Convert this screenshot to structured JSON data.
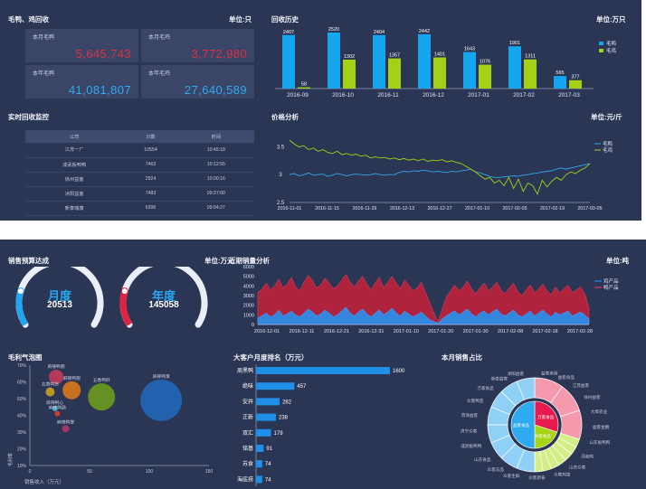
{
  "recycle": {
    "title": "毛鸭、鸡回收",
    "unit": "单位:只",
    "cards": [
      {
        "label": "本月毛鸭",
        "value": "5,645,743",
        "color": "#e03040"
      },
      {
        "label": "本月毛鸡",
        "value": "3,772,980",
        "color": "#e03040"
      },
      {
        "label": "本年毛鸭",
        "value": "41,081,807",
        "color": "#2eaaf0"
      },
      {
        "label": "本年毛鸡",
        "value": "27,640,589",
        "color": "#2eaaf0"
      }
    ]
  },
  "history": {
    "title": "回收历史",
    "unit": "单位:万只",
    "chart_data": {
      "type": "bar",
      "categories": [
        "2016-09",
        "2016-10",
        "2016-11",
        "2016-12",
        "2017-01",
        "2017-02",
        "2017-03"
      ],
      "series": [
        {
          "name": "毛鸭",
          "values": [
            2407,
            2520,
            2404,
            2442,
            1643,
            1901,
            565
          ],
          "color": "#16a6ef"
        },
        {
          "name": "毛鸡",
          "values": [
            58,
            1302,
            1357,
            1401,
            1076,
            1311,
            377
          ],
          "color": "#a4d115"
        }
      ],
      "ylim": [
        0,
        2600
      ]
    }
  },
  "monitor": {
    "title": "实时回收监控",
    "headers": [
      "公司",
      "只数",
      "时间"
    ],
    "rows": [
      [
        "江苏一厂",
        "10554",
        "10:45:18"
      ],
      [
        "成武板鸭鸭",
        "7463",
        "10:12:55"
      ],
      [
        "徐州益客",
        "2924",
        "10:00:16"
      ],
      [
        "沭阳益客",
        "7483",
        "09:37:00"
      ],
      [
        "新泰瑞康",
        "6396",
        "09:04:27"
      ]
    ]
  },
  "price": {
    "title": "价格分析",
    "unit": "单位:元/斤",
    "chart_data": {
      "type": "line",
      "x_ticks": [
        "2016-11-01",
        "2016-11-15",
        "2016-11-29",
        "2016-12-13",
        "2016-12-27",
        "2017-01-10",
        "2017-02-05",
        "2017-02-19",
        "2017-03-05"
      ],
      "y_ticks": [
        "3.5",
        "3",
        "2.5"
      ],
      "ylim": [
        2.5,
        3.8
      ],
      "series": [
        {
          "name": "毛鸭",
          "color": "#2ea8e8",
          "values": [
            3.0,
            3.02,
            2.98,
            3.0,
            3.03,
            2.99,
            3.0,
            3.01,
            2.97,
            2.99,
            3.02,
            3.0,
            2.98,
            3.0,
            3.01,
            3.0,
            2.99,
            3.0,
            3.02,
            3.0,
            2.99,
            3.0,
            3.0,
            3.04,
            3.06,
            3.05,
            3.07,
            3.06,
            3.08,
            3.07,
            3.05,
            3.06,
            3.05,
            3.04,
            3.06,
            3.05,
            3.07,
            3.08,
            3.1,
            3.05,
            3.03,
            3.0,
            2.97,
            2.95,
            2.95,
            2.96,
            2.97,
            2.98,
            2.97,
            2.99,
            3.0,
            3.02,
            3.03,
            3.05,
            3.06,
            3.07,
            3.1,
            3.12,
            3.1,
            3.12,
            3.14,
            3.16,
            3.18,
            3.2
          ]
        },
        {
          "name": "毛鸡",
          "color": "#a4d115",
          "values": [
            3.62,
            3.55,
            3.5,
            3.52,
            3.45,
            3.48,
            3.42,
            3.45,
            3.4,
            3.38,
            3.42,
            3.36,
            3.38,
            3.35,
            3.37,
            3.33,
            3.35,
            3.3,
            3.32,
            3.3,
            3.31,
            3.28,
            3.3,
            3.27,
            3.29,
            3.26,
            3.28,
            3.25,
            3.28,
            3.24,
            3.26,
            3.25,
            3.27,
            3.23,
            3.25,
            3.22,
            3.2,
            3.15,
            3.1,
            3.05,
            2.98,
            2.92,
            2.95,
            2.85,
            2.9,
            2.8,
            2.95,
            2.75,
            2.92,
            2.7,
            2.85,
            2.8,
            2.65,
            2.9,
            2.78,
            2.88,
            2.95,
            2.9,
            3.0,
            3.05,
            3.02,
            3.08,
            3.12,
            3.2
          ]
        }
      ]
    }
  },
  "budget": {
    "title": "销售预算达成",
    "unit": "单位:万元",
    "gauges": [
      {
        "label": "月度",
        "value": "20513",
        "ratio": 0.78,
        "color": "#22a4f0"
      },
      {
        "label": "年度",
        "value": "145058",
        "ratio": 0.72,
        "color": "#e2223e"
      }
    ]
  },
  "recent": {
    "title": "近期销量分析",
    "unit": "单位:吨",
    "chart_data": {
      "type": "area",
      "x_ticks": [
        "2016-12-01",
        "2016-12-11",
        "2016-12-21",
        "2016-12-31",
        "2017-01-10",
        "2017-01-20",
        "2017-01-30",
        "2017-02-08",
        "2017-02-18",
        "2017-02-28"
      ],
      "y_ticks": [
        "6000",
        "5000",
        "4000",
        "3000",
        "2000",
        "1000",
        "0"
      ],
      "ylim": [
        0,
        6000
      ],
      "series": [
        {
          "name": "鸡产品",
          "color": "#2e8ce8",
          "values": [
            700,
            900,
            1200,
            800,
            1000,
            1500,
            900,
            1100,
            1400,
            1000,
            800,
            1200,
            1600,
            1300,
            900,
            1100,
            1500,
            1200,
            800,
            1000,
            1400,
            1800,
            1200,
            900,
            1300,
            1600,
            1100,
            800,
            1200,
            1500,
            1000,
            1300,
            1700,
            1200,
            900,
            1400,
            1100,
            800,
            1000,
            1300,
            900,
            500,
            300,
            150,
            600,
            900,
            1200,
            1400,
            1000,
            1300,
            1600,
            1100,
            800,
            1200,
            1400,
            1000,
            1300,
            1600,
            1100,
            900,
            1200,
            1500,
            1000,
            800,
            1100,
            1400,
            900,
            1200,
            1500,
            1100,
            800,
            1300,
            1000,
            1200,
            1400,
            900,
            1100,
            1300,
            1000,
            600
          ]
        },
        {
          "name": "鸭产品",
          "color": "#c8203a",
          "values": [
            3300,
            3700,
            4300,
            3600,
            4000,
            4700,
            3800,
            4200,
            4900,
            3900,
            3500,
            4400,
            5100,
            4600,
            3800,
            4100,
            4800,
            4300,
            3700,
            4000,
            4600,
            5200,
            4400,
            3900,
            4500,
            5000,
            4200,
            3600,
            4300,
            4900,
            3800,
            4400,
            5000,
            4300,
            3700,
            4600,
            4100,
            3500,
            3800,
            4400,
            3300,
            2300,
            1200,
            300,
            1600,
            2900,
            3500,
            4100,
            3500,
            3900,
            4500,
            3700,
            3200,
            3800,
            4300,
            3500,
            3900,
            4400,
            3600,
            3200,
            3800,
            4300,
            3400,
            3000,
            3600,
            4100,
            3300,
            3700,
            4200,
            3500,
            3100,
            3900,
            3300,
            3700,
            4100,
            3300,
            3600,
            3900,
            3200,
            1700
          ]
        }
      ]
    }
  },
  "profit": {
    "title": "毛利气泡图",
    "chart_data": {
      "type": "scatter",
      "xlabel": "销售收入（万元）",
      "ylabel": "毛利率",
      "x_ticks": [
        "0",
        "50",
        "100",
        "150"
      ],
      "y_ticks": [
        "70%",
        "60%",
        "50%",
        "40%",
        "30%",
        "20%",
        "10%"
      ],
      "xlim": [
        0,
        150
      ],
      "ylim": [
        0.1,
        0.7
      ],
      "points": [
        {
          "label": "麻辣鸭肠",
          "x": 22,
          "y": 0.63,
          "r": 8,
          "color": "#c23b5a"
        },
        {
          "label": "麻辣鸭翅",
          "x": 35,
          "y": 0.55,
          "r": 10,
          "color": "#d9791c"
        },
        {
          "label": "五香鸭货",
          "x": 17,
          "y": 0.54,
          "r": 5,
          "color": "#c9a020"
        },
        {
          "label": "五香鸭肝",
          "x": 60,
          "y": 0.51,
          "r": 15,
          "color": "#6c9a1e"
        },
        {
          "label": "麻辣鸭掌",
          "x": 110,
          "y": 0.49,
          "r": 23,
          "color": "#2166b8"
        },
        {
          "label": "麻辣鸭心",
          "x": 21,
          "y": 0.44,
          "r": 3,
          "color": "#3bb0c8"
        },
        {
          "label": "麻辣鸭肠",
          "x": 23,
          "y": 0.41,
          "r": 3,
          "color": "#dd3f2a"
        },
        {
          "label": "麻辣鸭掌",
          "x": 30,
          "y": 0.32,
          "r": 4,
          "color": "#b0346e"
        }
      ]
    }
  },
  "ranking": {
    "title": "大客户月度排名（万元）",
    "chart_data": {
      "type": "bar",
      "categories": [
        "周黑鸭",
        "绝味",
        "安井",
        "正新",
        "双汇",
        "铭基",
        "苏食",
        "海底捞"
      ],
      "values": [
        1600,
        457,
        282,
        238,
        179,
        91,
        74,
        74
      ],
      "xlim": [
        0,
        1600
      ],
      "color": "#1e90e8"
    }
  },
  "share": {
    "title": "本月销售占比",
    "chart_data": {
      "type": "pie",
      "inner": [
        {
          "label": "万家食品",
          "value": 30,
          "color": "#e8194f"
        },
        {
          "label": "众客食品",
          "value": 20,
          "color": "#a8d418"
        },
        {
          "label": "益客食品",
          "value": 50,
          "color": "#2eaaf0"
        }
      ],
      "outer_colors": [
        "#f59aad",
        "#d4ee86",
        "#8ed0f6"
      ],
      "labels": [
        "万家食品",
        "新泰益客",
        "沭阳益客",
        "益客美厨",
        "益客食品",
        "江苏益客",
        "徐州益客",
        "大禹农业",
        "益客金鹏",
        "山东板鸭鸭",
        "凤岐鸡",
        "山东众客",
        "众客鸡苗",
        "众客新泰",
        "众客生鲜",
        "众客冻品",
        "山东食品",
        "成武板鸭鸭",
        "济宁众客",
        "菏泽益客",
        "众客鸭苗"
      ]
    }
  }
}
